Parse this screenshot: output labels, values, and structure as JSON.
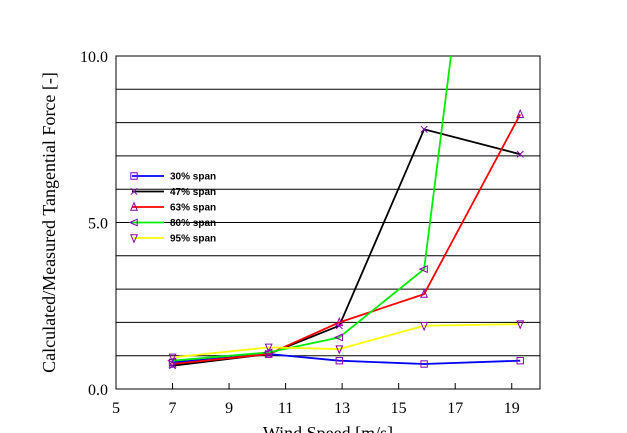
{
  "chart_data": {
    "type": "line",
    "xlabel": "Wind Speed [m/s]",
    "ylabel": "Calculated/Measured Tangential Force [-]",
    "xlim": [
      5,
      20
    ],
    "ylim": [
      0,
      10
    ],
    "x_tick_positions": [
      5,
      7,
      9,
      11,
      13,
      15,
      17,
      19
    ],
    "x_tick_labels": [
      "5",
      "7",
      "9",
      "11",
      "13",
      "15",
      "17",
      "19"
    ],
    "y_ticks": [
      0,
      1,
      2,
      3,
      4,
      5,
      6,
      7,
      8,
      9,
      10
    ],
    "y_tick_labels": [
      {
        "value": 0,
        "label": "0.0"
      },
      {
        "value": 5,
        "label": "5.0"
      },
      {
        "value": 10,
        "label": "10.0"
      }
    ],
    "grid": "horizontal",
    "legend_position": "left-middle",
    "series": [
      {
        "name": "30% span",
        "color": "#0000ff",
        "marker": "square",
        "x": [
          7.0,
          10.4,
          12.9,
          15.9,
          19.3
        ],
        "y": [
          0.8,
          1.05,
          0.85,
          0.75,
          0.85
        ]
      },
      {
        "name": "47% span",
        "color": "#000000",
        "marker": "cross",
        "x": [
          7.0,
          10.4,
          12.9,
          15.9,
          19.3
        ],
        "y": [
          0.7,
          1.05,
          1.9,
          7.8,
          7.05
        ]
      },
      {
        "name": "63% span",
        "color": "#ff0000",
        "marker": "triangle-up",
        "x": [
          7.0,
          10.4,
          12.9,
          15.9,
          19.3
        ],
        "y": [
          0.75,
          1.05,
          2.0,
          2.85,
          8.25
        ]
      },
      {
        "name": "80% span",
        "color": "#00ee00",
        "marker": "triangle-left",
        "x": [
          7.0,
          10.4,
          12.9,
          15.9,
          16.85
        ],
        "y": [
          0.85,
          1.1,
          1.55,
          3.6,
          10.0
        ]
      },
      {
        "name": "95% span",
        "color": "#ffff00",
        "marker": "triangle-down",
        "x": [
          7.0,
          10.4,
          12.9,
          15.9,
          19.3
        ],
        "y": [
          0.95,
          1.25,
          1.2,
          1.9,
          1.95
        ]
      }
    ]
  }
}
